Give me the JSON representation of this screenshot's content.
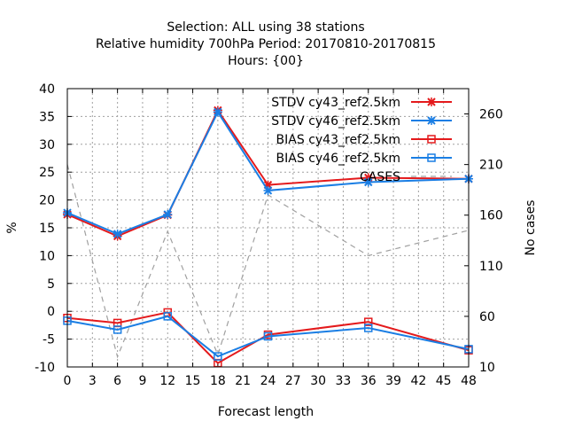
{
  "chart_data": {
    "type": "line",
    "title_lines": [
      "Selection: ALL using    38 stations",
      "Relative humidity 700hPa   Period: 20170810-20170815",
      "Hours: {00}"
    ],
    "xlabel": "Forecast length",
    "ylabel": "%",
    "y2label": "No cases",
    "xlim": [
      0,
      48
    ],
    "ylim": [
      -10,
      40
    ],
    "y2lim": [
      10,
      285
    ],
    "x_ticks": [
      0,
      3,
      6,
      9,
      12,
      15,
      18,
      21,
      24,
      27,
      30,
      33,
      36,
      39,
      42,
      45,
      48
    ],
    "y_ticks": [
      -10,
      -5,
      0,
      5,
      10,
      15,
      20,
      25,
      30,
      35,
      40
    ],
    "y2_ticks": [
      10,
      60,
      110,
      160,
      210,
      260
    ],
    "grid": true,
    "legend_position": "top-right",
    "series": [
      {
        "name": "STDV cy43_ref2.5km",
        "color": "#e41a1c",
        "marker": "x",
        "axis": "y",
        "x": [
          0,
          6,
          12,
          18,
          24,
          36,
          48
        ],
        "values": [
          17.4,
          13.5,
          17.3,
          36.1,
          22.7,
          24.0,
          23.8
        ]
      },
      {
        "name": "STDV cy46_ref2.5km",
        "color": "#1a7ee4",
        "marker": "x",
        "axis": "y",
        "x": [
          0,
          6,
          12,
          18,
          24,
          36,
          48
        ],
        "values": [
          17.7,
          13.9,
          17.4,
          35.8,
          21.7,
          23.2,
          23.8
        ]
      },
      {
        "name": "BIAS cy43_ref2.5km",
        "color": "#e41a1c",
        "marker": "square",
        "axis": "y",
        "x": [
          0,
          6,
          12,
          18,
          24,
          36,
          48
        ],
        "values": [
          -1.2,
          -2.1,
          -0.2,
          -9.3,
          -4.2,
          -1.9,
          -7.0
        ]
      },
      {
        "name": "BIAS cy46_ref2.5km",
        "color": "#1a7ee4",
        "marker": "square",
        "axis": "y",
        "x": [
          0,
          6,
          12,
          18,
          24,
          36,
          48
        ],
        "values": [
          -1.7,
          -3.3,
          -0.9,
          -8.1,
          -4.5,
          -3.0,
          -6.8
        ]
      },
      {
        "name": "CASES",
        "color": "#a0a0a0",
        "marker": "none",
        "dashed": true,
        "axis": "y2",
        "x": [
          0,
          6,
          12,
          18,
          24,
          36,
          48
        ],
        "values": [
          210,
          20,
          144,
          22,
          180,
          120,
          145
        ]
      }
    ]
  }
}
